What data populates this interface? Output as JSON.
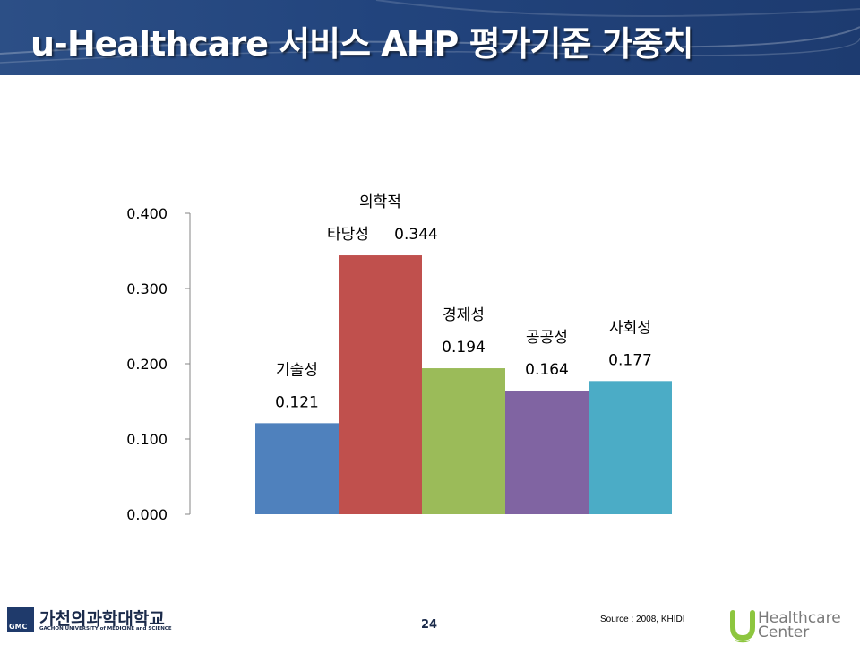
{
  "slide": {
    "title": "u-Healthcare 서비스 AHP 평가기준 가중치",
    "page_number": "24",
    "source": "Source : 2008, KHIDI",
    "school_name_ko": "가천의과학대학교",
    "school_name_en": "GACHON UNIVERSITY of MEDICINE and SCIENCE",
    "school_logo_abbr": "GMC",
    "center_logo_line1": "Healthcare",
    "center_logo_line2": "Center",
    "center_logo_mark": "U"
  },
  "chart_data": {
    "type": "bar",
    "title": "",
    "xlabel": "",
    "ylabel": "",
    "ylim": [
      0,
      0.4
    ],
    "yticks": [
      "0.000",
      "0.100",
      "0.200",
      "0.300",
      "0.400"
    ],
    "legend": "none",
    "grid": false,
    "categories": [
      {
        "lines": [
          "기술성"
        ],
        "value_label": "0.121"
      },
      {
        "lines": [
          "의학적",
          "타당성"
        ],
        "value_label": "0.344"
      },
      {
        "lines": [
          "경제성"
        ],
        "value_label": "0.194"
      },
      {
        "lines": [
          "공공성"
        ],
        "value_label": "0.164"
      },
      {
        "lines": [
          "사회성"
        ],
        "value_label": "0.177"
      }
    ],
    "values": [
      0.121,
      0.344,
      0.194,
      0.164,
      0.177
    ],
    "colors": [
      "#4f81bd",
      "#c0504d",
      "#9bbb59",
      "#8064a2",
      "#4bacc6"
    ]
  }
}
